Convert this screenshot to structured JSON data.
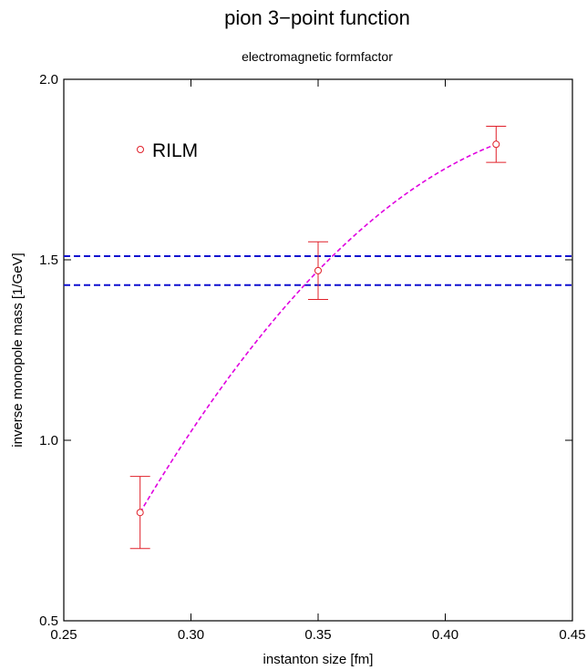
{
  "chart_data": {
    "type": "scatter",
    "title": "pion 3−point function",
    "subtitle": "electromagnetic formfactor",
    "xlabel": "instanton size [fm]",
    "ylabel": "inverse monopole mass [1/GeV]",
    "xlim": [
      0.25,
      0.45
    ],
    "ylim": [
      0.5,
      2.0
    ],
    "x_ticks": [
      0.25,
      0.3,
      0.35,
      0.4,
      0.45
    ],
    "x_tick_labels": [
      "0.25",
      "0.30",
      "0.35",
      "0.40",
      "0.45"
    ],
    "y_ticks": [
      0.5,
      1.0,
      1.5,
      2.0
    ],
    "y_tick_labels": [
      "0.5",
      "1.0",
      "1.5",
      "2.0"
    ],
    "grid": false,
    "legend_position": "top-left",
    "series": [
      {
        "name": "RILM",
        "marker": "open-circle",
        "color": "#e0202a",
        "x": [
          0.28,
          0.35,
          0.42
        ],
        "y": [
          0.8,
          1.47,
          1.82
        ],
        "yerr": [
          0.1,
          0.08,
          0.05
        ]
      }
    ],
    "fit_curve": {
      "style": "dashed",
      "color": "#e000e0",
      "x": [
        0.28,
        0.35,
        0.42
      ],
      "y": [
        0.8,
        1.47,
        1.82
      ]
    },
    "reference_lines": {
      "style": "dashed",
      "color": "#1010d0",
      "y": [
        1.51,
        1.43
      ]
    }
  }
}
